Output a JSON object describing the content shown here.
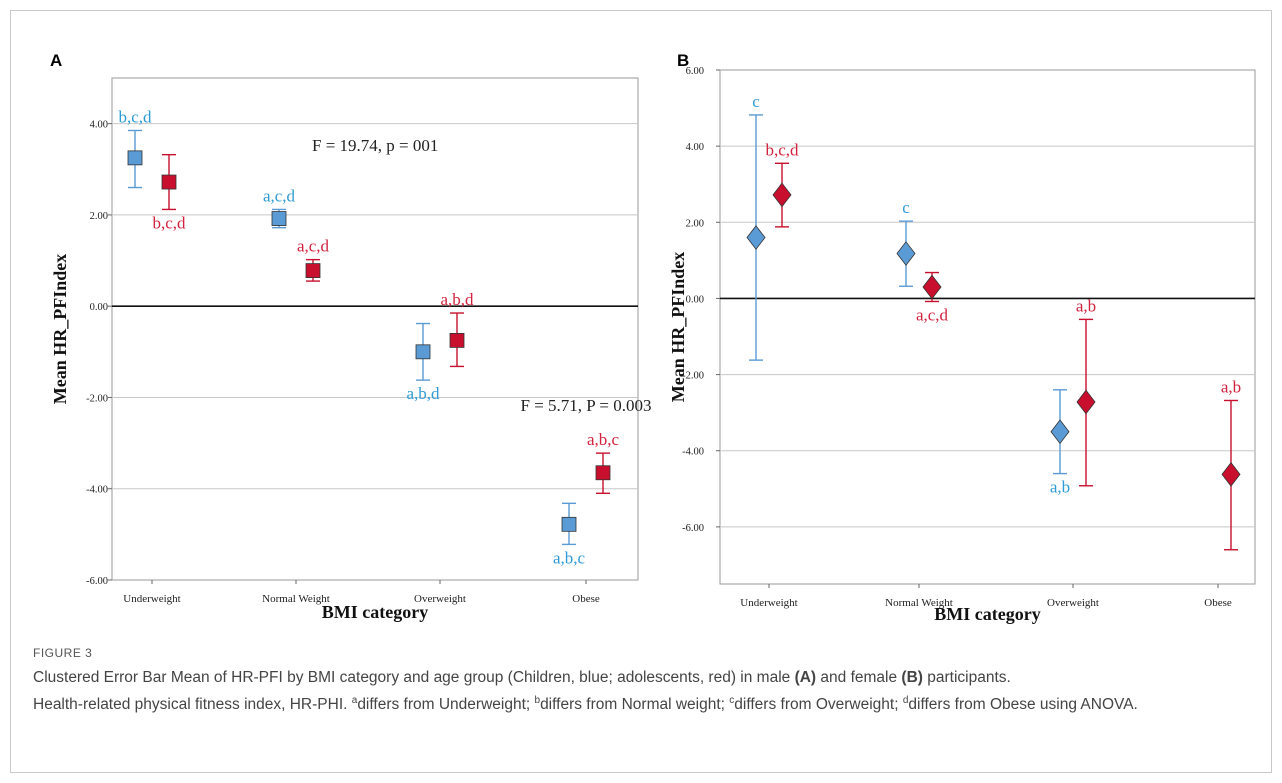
{
  "colors": {
    "children": "#5b9bd5",
    "children_text": "#2e9bd6",
    "adolescents": "#c8102e",
    "adolescents_text": "#d2233e",
    "grid": "#c8c8c8",
    "zero_line": "#111111"
  },
  "chart_data": [
    {
      "panel_label": "A",
      "type": "error_bar",
      "marker": "square",
      "xlabel": "BMI category",
      "ylabel": "Mean HR_PFIndex",
      "ylim": [
        -6,
        5
      ],
      "yticks": [
        4,
        2,
        0,
        -2,
        -4,
        -6
      ],
      "ytick_labels": [
        "4.00",
        "2.00",
        "0.00",
        "-2.00",
        "-4.00",
        "-6.00"
      ],
      "grid": true,
      "categories": [
        "Underweight",
        "Normal Weight",
        "Overweight",
        "Obese"
      ],
      "series": [
        {
          "key": "children",
          "points": [
            {
              "mean": 3.25,
              "lo": 2.6,
              "hi": 3.85,
              "label": "b,c,d",
              "label_pos": "above"
            },
            {
              "mean": 1.92,
              "lo": 1.72,
              "hi": 2.12,
              "label": "a,c,d",
              "label_pos": "above"
            },
            {
              "mean": -1.0,
              "lo": -1.62,
              "hi": -0.38,
              "label": "a,b,d",
              "label_pos": "below"
            },
            {
              "mean": -4.78,
              "lo": -5.22,
              "hi": -4.32,
              "label": "a,b,c",
              "label_pos": "below"
            }
          ]
        },
        {
          "key": "adolescents",
          "points": [
            {
              "mean": 2.72,
              "lo": 2.12,
              "hi": 3.32,
              "label": "b,c,d",
              "label_pos": "below"
            },
            {
              "mean": 0.78,
              "lo": 0.55,
              "hi": 1.02,
              "label": "a,c,d",
              "label_pos": "above"
            },
            {
              "mean": -0.75,
              "lo": -1.32,
              "hi": -0.15,
              "label": "a,b,d",
              "label_pos": "above"
            },
            {
              "mean": -3.65,
              "lo": -4.1,
              "hi": -3.22,
              "label": "a,b,c",
              "label_pos": "above"
            }
          ]
        }
      ],
      "annotations": [
        {
          "text": "F = 19.74, p = 001",
          "x": 1.55,
          "y": 3.4
        },
        {
          "text": "F = 5.71, P = 0.003",
          "x": 3.22,
          "y": -2.3
        }
      ]
    },
    {
      "panel_label": "B",
      "type": "error_bar",
      "marker": "diamond",
      "xlabel": "BMI category",
      "ylabel": "Mean HR_PFIndex",
      "ylim": [
        -7.5,
        6
      ],
      "yticks": [
        6,
        4,
        2,
        0,
        -2,
        -4,
        -6
      ],
      "ytick_labels": [
        "6.00",
        "4.00",
        "2.00",
        "0.00",
        "-2.00",
        "-4.00",
        "-6.00"
      ],
      "grid": true,
      "categories": [
        "Underweight",
        "Normal Weight",
        "Overweight",
        "Obese"
      ],
      "series": [
        {
          "key": "children",
          "points": [
            {
              "mean": 1.6,
              "lo": -1.62,
              "hi": 4.82,
              "label": "c",
              "label_pos": "above"
            },
            {
              "mean": 1.18,
              "lo": 0.32,
              "hi": 2.03,
              "label": "c",
              "label_pos": "above"
            },
            {
              "mean": -3.5,
              "lo": -4.6,
              "hi": -2.4,
              "label": "a,b",
              "label_pos": "below"
            },
            null
          ]
        },
        {
          "key": "adolescents",
          "points": [
            {
              "mean": 2.72,
              "lo": 1.88,
              "hi": 3.55,
              "label": "b,c,d",
              "label_pos": "above"
            },
            {
              "mean": 0.3,
              "lo": -0.08,
              "hi": 0.68,
              "label": "a,c,d",
              "label_pos": "below"
            },
            {
              "mean": -2.72,
              "lo": -4.92,
              "hi": -0.55,
              "label": "a,b",
              "label_pos": "above"
            },
            {
              "mean": -4.62,
              "lo": -6.6,
              "hi": -2.68,
              "label": "a,b",
              "label_pos": "above"
            }
          ]
        }
      ],
      "annotations": []
    }
  ],
  "caption": {
    "label": "FIGURE 3",
    "line1_pre": "Clustered Error Bar Mean of HR-PFI by BMI category and age group (Children, blue; adolescents, red) in male ",
    "bold_a": "(A)",
    "line1_mid": " and female ",
    "bold_b": "(B)",
    "line1_post": " participants.",
    "line2_pre": "Health-related physical fitness index, HR-PHI. ",
    "sup_a": "a",
    "t_a": "differs from Underweight; ",
    "sup_b": "b",
    "t_b": "differs from Normal weight; ",
    "sup_c": "c",
    "t_c": "differs from Overweight; ",
    "sup_d": "d",
    "t_d": "differs from Obese using ANOVA."
  }
}
